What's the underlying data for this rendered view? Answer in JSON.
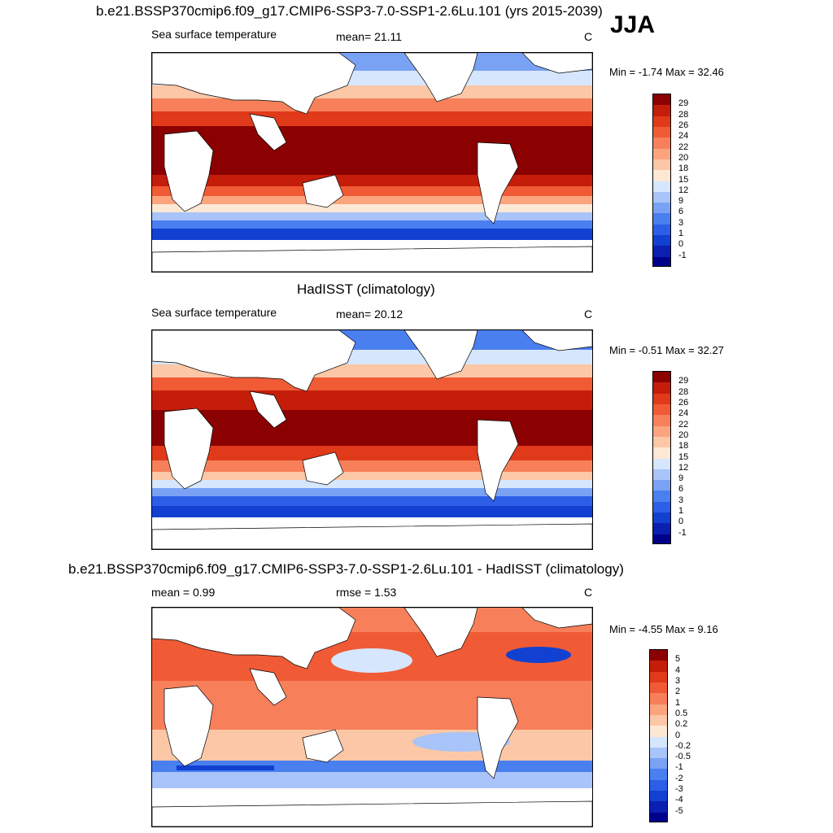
{
  "season": "JJA",
  "panels": [
    {
      "title": "b.e21.BSSP370cmip6.f09_g17.CMIP6-SSP3-7.0-SSP1-2.6Lu.101 (yrs 2015-2039)",
      "left_label": "Sea surface temperature",
      "center_label": "mean=  21.11",
      "units": "C",
      "minmax": "Min =  -1.74 Max =  32.46",
      "colors": [
        "#00008b",
        "#0b1fb0",
        "#1240d0",
        "#2c5ee8",
        "#4a7ff0",
        "#7aa2f4",
        "#a8c4f8",
        "#d6e6fc",
        "#fde8d6",
        "#fcc7a6",
        "#fba47e",
        "#f7805a",
        "#f05b36",
        "#e03a1a",
        "#c41e0a",
        "#8b0000"
      ],
      "tick_labels": [
        "-1",
        "0",
        "1",
        "3",
        "6",
        "9",
        "12",
        "15",
        "18",
        "20",
        "22",
        "24",
        "26",
        "28",
        "29"
      ]
    },
    {
      "title": "HadISST (climatology)",
      "left_label": "Sea surface temperature",
      "center_label": "mean=  20.12",
      "units": "C",
      "minmax": "Min =  -0.51 Max =  32.27",
      "colors": [
        "#00008b",
        "#0b1fb0",
        "#1240d0",
        "#2c5ee8",
        "#4a7ff0",
        "#7aa2f4",
        "#a8c4f8",
        "#d6e6fc",
        "#fde8d6",
        "#fcc7a6",
        "#fba47e",
        "#f7805a",
        "#f05b36",
        "#e03a1a",
        "#c41e0a",
        "#8b0000"
      ],
      "tick_labels": [
        "-1",
        "0",
        "1",
        "3",
        "6",
        "9",
        "12",
        "15",
        "18",
        "20",
        "22",
        "24",
        "26",
        "28",
        "29"
      ]
    },
    {
      "title": "b.e21.BSSP370cmip6.f09_g17.CMIP6-SSP3-7.0-SSP1-2.6Lu.101 - HadISST (climatology)",
      "left_label": "mean =   0.99",
      "center_label": "rmse =   1.53",
      "units": "C",
      "minmax": "Min =  -4.55 Max =   9.16",
      "colors": [
        "#00008b",
        "#0b1fb0",
        "#1240d0",
        "#2c5ee8",
        "#4a7ff0",
        "#7aa2f4",
        "#a8c4f8",
        "#d6e6fc",
        "#fde8d6",
        "#fcc7a6",
        "#fba47e",
        "#f7805a",
        "#f05b36",
        "#e03a1a",
        "#c41e0a",
        "#8b0000"
      ],
      "tick_labels": [
        "-5",
        "-4",
        "-3",
        "-2",
        "-1",
        "-0.5",
        "-0.2",
        "0",
        "0.2",
        "0.5",
        "1",
        "2",
        "3",
        "4",
        "5"
      ]
    }
  ]
}
